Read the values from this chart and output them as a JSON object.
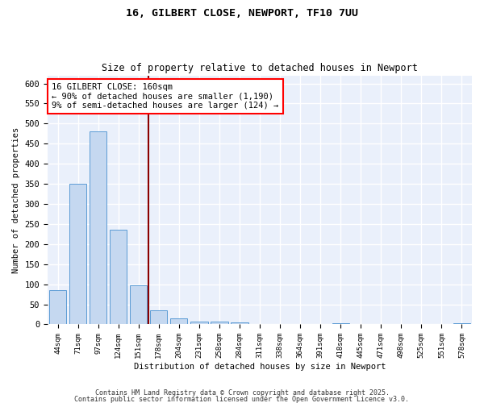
{
  "title1": "16, GILBERT CLOSE, NEWPORT, TF10 7UU",
  "title2": "Size of property relative to detached houses in Newport",
  "xlabel": "Distribution of detached houses by size in Newport",
  "ylabel": "Number of detached properties",
  "categories": [
    "44sqm",
    "71sqm",
    "97sqm",
    "124sqm",
    "151sqm",
    "178sqm",
    "204sqm",
    "231sqm",
    "258sqm",
    "284sqm",
    "311sqm",
    "338sqm",
    "364sqm",
    "391sqm",
    "418sqm",
    "445sqm",
    "471sqm",
    "498sqm",
    "525sqm",
    "551sqm",
    "578sqm"
  ],
  "values": [
    85,
    350,
    480,
    235,
    98,
    35,
    15,
    7,
    7,
    5,
    0,
    0,
    0,
    0,
    3,
    0,
    0,
    0,
    0,
    0,
    3
  ],
  "bar_color": "#c5d8f0",
  "bar_edge_color": "#5b9bd5",
  "vline_color": "#8B0000",
  "annotation_text": "16 GILBERT CLOSE: 160sqm\n← 90% of detached houses are smaller (1,190)\n9% of semi-detached houses are larger (124) →",
  "ylim": [
    0,
    620
  ],
  "yticks": [
    0,
    50,
    100,
    150,
    200,
    250,
    300,
    350,
    400,
    450,
    500,
    550,
    600
  ],
  "background_color": "#eaf0fb",
  "grid_color": "#ffffff",
  "footer1": "Contains HM Land Registry data © Crown copyright and database right 2025.",
  "footer2": "Contains public sector information licensed under the Open Government Licence v3.0."
}
